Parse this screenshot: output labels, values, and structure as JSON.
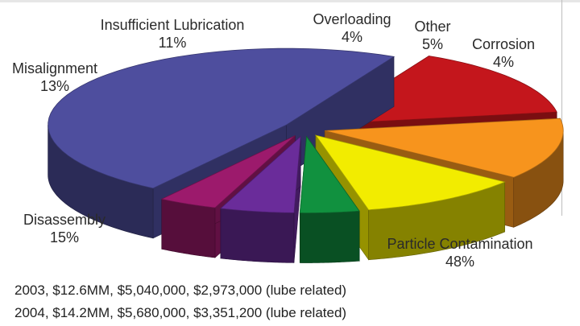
{
  "chart_data": {
    "type": "pie",
    "title": "",
    "slices": [
      {
        "label": "Particle Contamination",
        "value": 48,
        "value_label": "48%",
        "color": "#4e4e9e"
      },
      {
        "label": "Disassembly",
        "value": 15,
        "value_label": "15%",
        "color": "#c4161c"
      },
      {
        "label": "Misalignment",
        "value": 13,
        "value_label": "13%",
        "color": "#f7941d"
      },
      {
        "label": "Insufficient Lubrication",
        "value": 11,
        "value_label": "11%",
        "color": "#f2ec00"
      },
      {
        "label": "Overloading",
        "value": 4,
        "value_label": "4%",
        "color": "#11913f"
      },
      {
        "label": "Other",
        "value": 5,
        "value_label": "5%",
        "color": "#6a2c9a"
      },
      {
        "label": "Corrosion",
        "value": 4,
        "value_label": "4%",
        "color": "#9c1a6c"
      }
    ],
    "exploded": true,
    "three_d": true
  },
  "notes": [
    "2003, $12.6MM, $5,040,000, $2,973,000 (lube related)",
    "2004, $14.2MM, $5,680,000, $3,351,200 (lube related)"
  ]
}
